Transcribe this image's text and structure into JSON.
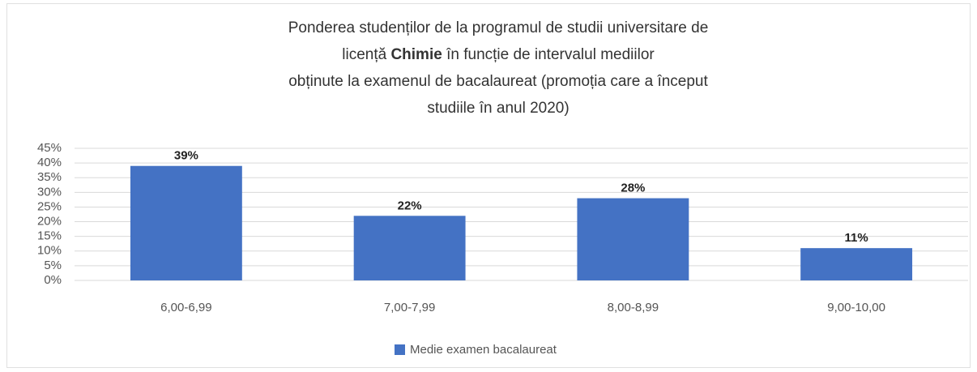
{
  "chart_data": {
    "type": "bar",
    "title": [
      "Ponderea studenților de la programul de studii universitare de",
      "licență",
      "Chimie",
      "în funcție de intervalul mediilor",
      "obținute la examenul de bacalaureat (promoția care a început",
      "studiile în anul 2020)"
    ],
    "categories": [
      "6,00-6,99",
      "7,00-7,99",
      "8,00-8,99",
      "9,00-10,00"
    ],
    "series": [
      {
        "name": "Medie examen bacalaureat",
        "color": "#4472c4",
        "values": [
          39,
          22,
          28,
          11
        ],
        "value_labels": [
          "39%",
          "22%",
          "28%",
          "11%"
        ]
      }
    ],
    "ylim": [
      0,
      45
    ],
    "yticks": [
      {
        "value": 0,
        "label": "0%"
      },
      {
        "value": 5,
        "label": "5%"
      },
      {
        "value": 10,
        "label": "10%"
      },
      {
        "value": 15,
        "label": "15%"
      },
      {
        "value": 20,
        "label": "20%"
      },
      {
        "value": 25,
        "label": "25%"
      },
      {
        "value": 30,
        "label": "30%"
      },
      {
        "value": 35,
        "label": "35%"
      },
      {
        "value": 40,
        "label": "40%"
      },
      {
        "value": 45,
        "label": "45%"
      }
    ],
    "grid": true,
    "legend": "bottom"
  }
}
